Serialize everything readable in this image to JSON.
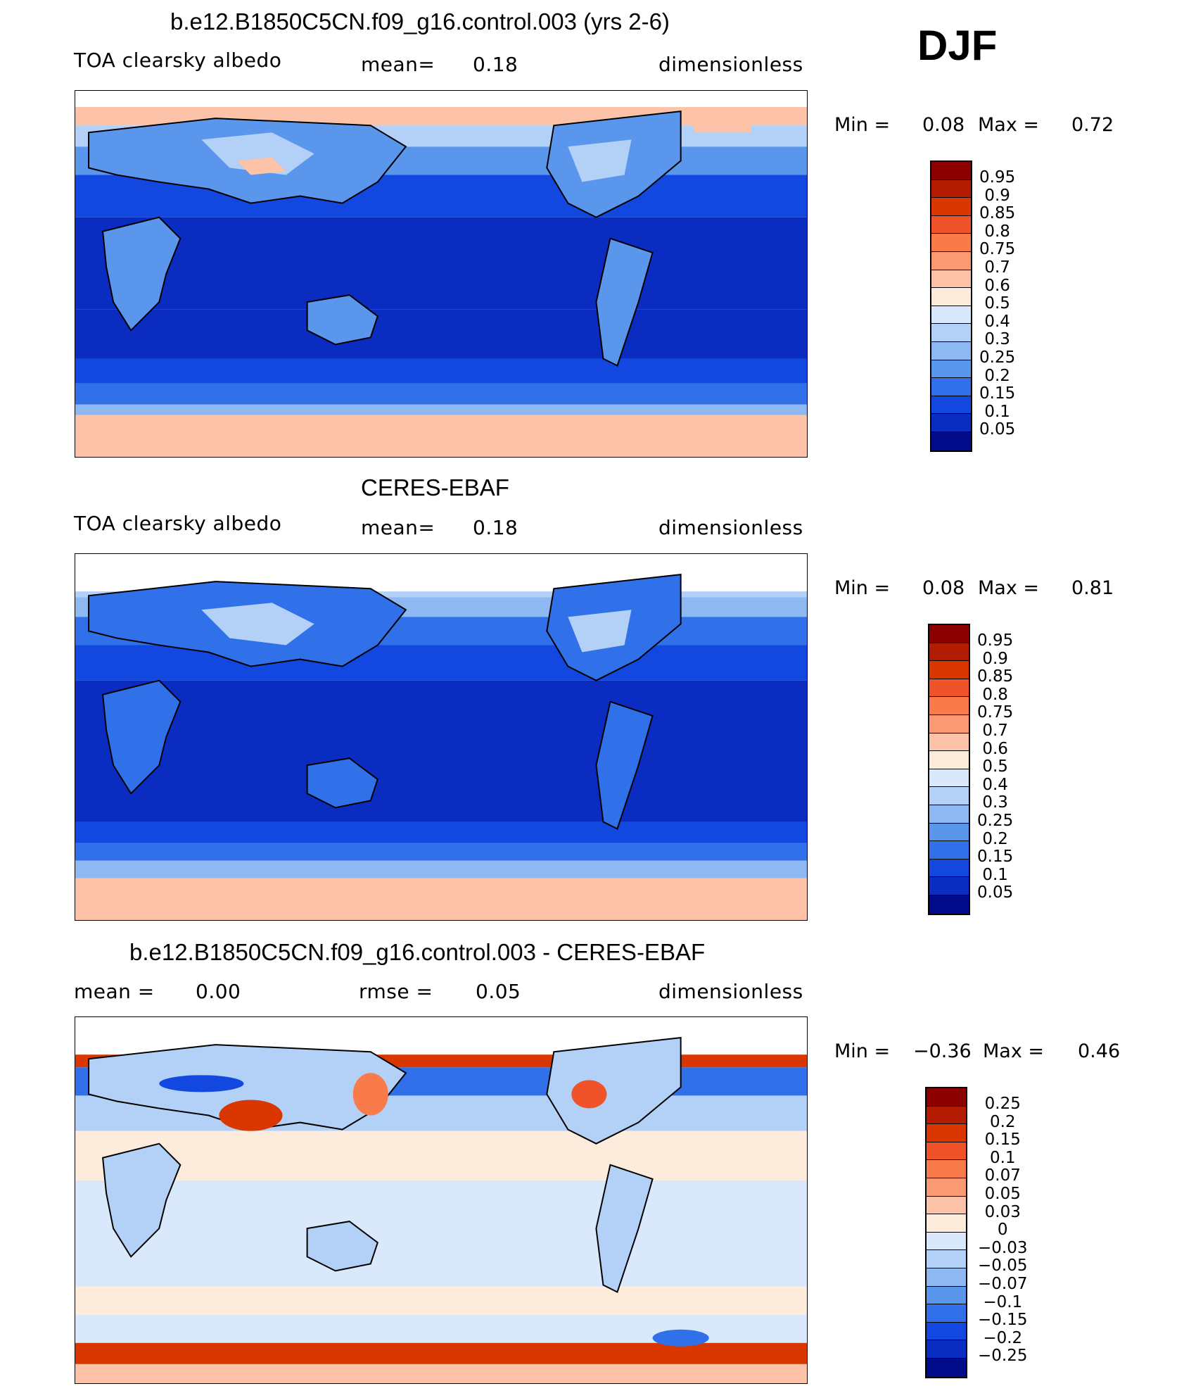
{
  "season_label": "DJF",
  "panels": [
    {
      "title": "b.e12.B1850C5CN.f09_g16.control.003 (yrs 2-6)",
      "left_label": "TOA clearsky albedo",
      "mid_label": "mean=",
      "mid_value": "0.18",
      "units": "dimensionless",
      "min_label": "Min =",
      "min_value": "0.08",
      "max_label": "Max =",
      "max_value": "0.72",
      "colorbar": {
        "labels": [
          "0.95",
          "0.9",
          "0.85",
          "0.8",
          "0.75",
          "0.7",
          "0.6",
          "0.5",
          "0.4",
          "0.3",
          "0.25",
          "0.2",
          "0.15",
          "0.1",
          "0.05"
        ],
        "colors": [
          "#8b0000",
          "#b31c00",
          "#d93600",
          "#f0522a",
          "#f97a4a",
          "#fb9a72",
          "#fcc3a8",
          "#fdebdc",
          "#d9e8fb",
          "#b3d0f7",
          "#8db8f2",
          "#5a96ec",
          "#3070e8",
          "#1248e0",
          "#0a2cc0",
          "#000c8a"
        ]
      }
    },
    {
      "title": "CERES-EBAF",
      "left_label": "TOA clearsky albedo",
      "mid_label": "mean=",
      "mid_value": "0.18",
      "units": "dimensionless",
      "min_label": "Min =",
      "min_value": "0.08",
      "max_label": "Max =",
      "max_value": "0.81",
      "colorbar": {
        "labels": [
          "0.95",
          "0.9",
          "0.85",
          "0.8",
          "0.75",
          "0.7",
          "0.6",
          "0.5",
          "0.4",
          "0.3",
          "0.25",
          "0.2",
          "0.15",
          "0.1",
          "0.05"
        ],
        "colors": [
          "#8b0000",
          "#b31c00",
          "#d93600",
          "#f0522a",
          "#f97a4a",
          "#fb9a72",
          "#fcc3a8",
          "#fdebdc",
          "#d9e8fb",
          "#b3d0f7",
          "#8db8f2",
          "#5a96ec",
          "#3070e8",
          "#1248e0",
          "#0a2cc0",
          "#000c8a"
        ]
      }
    },
    {
      "title": "b.e12.B1850C5CN.f09_g16.control.003 - CERES-EBAF",
      "left_label": "mean =",
      "left_value": "0.00",
      "mid_label": "rmse =",
      "mid_value": "0.05",
      "units": "dimensionless",
      "min_label": "Min =",
      "min_value": "−0.36",
      "max_label": "Max =",
      "max_value": "0.46",
      "colorbar": {
        "labels": [
          "0.25",
          "0.2",
          "0.15",
          "0.1",
          "0.07",
          "0.05",
          "0.03",
          "0",
          "−0.03",
          "−0.05",
          "−0.07",
          "−0.1",
          "−0.15",
          "−0.2",
          "−0.25"
        ],
        "colors": [
          "#8b0000",
          "#b31c00",
          "#d93600",
          "#f0522a",
          "#f97a4a",
          "#fb9a72",
          "#fcc3a8",
          "#fdebdc",
          "#d9e8fb",
          "#b3d0f7",
          "#8db8f2",
          "#5a96ec",
          "#3070e8",
          "#1248e0",
          "#0a2cc0",
          "#000c8a"
        ]
      }
    }
  ]
}
